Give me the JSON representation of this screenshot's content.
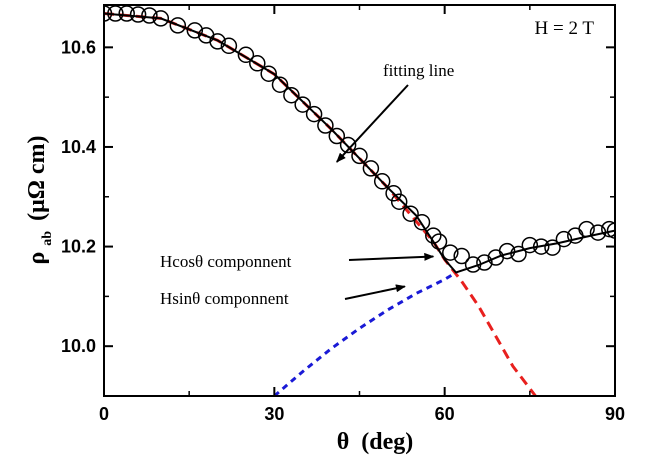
{
  "chart_data": {
    "type": "scatter",
    "annotation_field": "H = 2 T",
    "xlabel": {
      "symbol": "θ",
      "unit": "(deg)"
    },
    "ylabel": {
      "symbol": "ρ",
      "subscript": "ab",
      "unit": "(μΩ cm)"
    },
    "xlim": [
      0,
      90
    ],
    "ylim": [
      9.9,
      10.685
    ],
    "xticks": [
      0,
      30,
      60,
      90
    ],
    "yticks": [
      10.0,
      10.2,
      10.4,
      10.6
    ],
    "ytick_labels": [
      "10.0",
      "10.2",
      "10.4",
      "10.6"
    ],
    "grid": false,
    "annotations": [
      {
        "text": "fitting line",
        "target": [
          41,
          10.37
        ]
      },
      {
        "text": "Hcosθ componnent",
        "target": [
          58,
          10.18
        ]
      },
      {
        "text": "Hsinθ componnent",
        "target": [
          53,
          10.12
        ]
      }
    ],
    "colors": {
      "cos_component": "#e8201e",
      "sin_component": "#1a1ad6",
      "fit": "#000000"
    },
    "series": [
      {
        "kind": "markers",
        "x": [
          0,
          2,
          4,
          6,
          8,
          10,
          13,
          16,
          18,
          20,
          22,
          25,
          27,
          29,
          31,
          33,
          35,
          37,
          39,
          41,
          43,
          45,
          47,
          49,
          51,
          52,
          54,
          56,
          58,
          59,
          61,
          63,
          65,
          67,
          69,
          71,
          73,
          75,
          77,
          79,
          81,
          83,
          85,
          87,
          89,
          90
        ],
        "y": [
          10.668,
          10.668,
          10.668,
          10.666,
          10.664,
          10.658,
          10.644,
          10.634,
          10.624,
          10.612,
          10.603,
          10.585,
          10.568,
          10.547,
          10.525,
          10.504,
          10.485,
          10.466,
          10.443,
          10.422,
          10.404,
          10.382,
          10.357,
          10.331,
          10.307,
          10.29,
          10.266,
          10.249,
          10.222,
          10.21,
          10.188,
          10.181,
          10.164,
          10.168,
          10.178,
          10.191,
          10.185,
          10.203,
          10.2,
          10.198,
          10.215,
          10.222,
          10.235,
          10.228,
          10.235,
          10.232
        ]
      },
      {
        "kind": "fit",
        "x": [
          0,
          10,
          20,
          30,
          40,
          50,
          55,
          58,
          60,
          62,
          66,
          70,
          75,
          80,
          85,
          90
        ],
        "y": [
          10.668,
          10.658,
          10.614,
          10.546,
          10.436,
          10.318,
          10.262,
          10.21,
          10.174,
          10.148,
          10.163,
          10.182,
          10.197,
          10.207,
          10.22,
          10.232
        ]
      },
      {
        "kind": "cos_component",
        "x": [
          0,
          10,
          20,
          30,
          40,
          50,
          58,
          60,
          63,
          66,
          69,
          72,
          76
        ],
        "y": [
          10.668,
          10.658,
          10.614,
          10.546,
          10.436,
          10.318,
          10.21,
          10.174,
          10.13,
          10.08,
          10.02,
          9.96,
          9.9
        ]
      },
      {
        "kind": "sin_component",
        "x": [
          30,
          35,
          40,
          45,
          50,
          55,
          60,
          62
        ],
        "y": [
          9.9,
          9.949,
          9.995,
          10.036,
          10.073,
          10.106,
          10.134,
          10.148
        ]
      }
    ]
  }
}
